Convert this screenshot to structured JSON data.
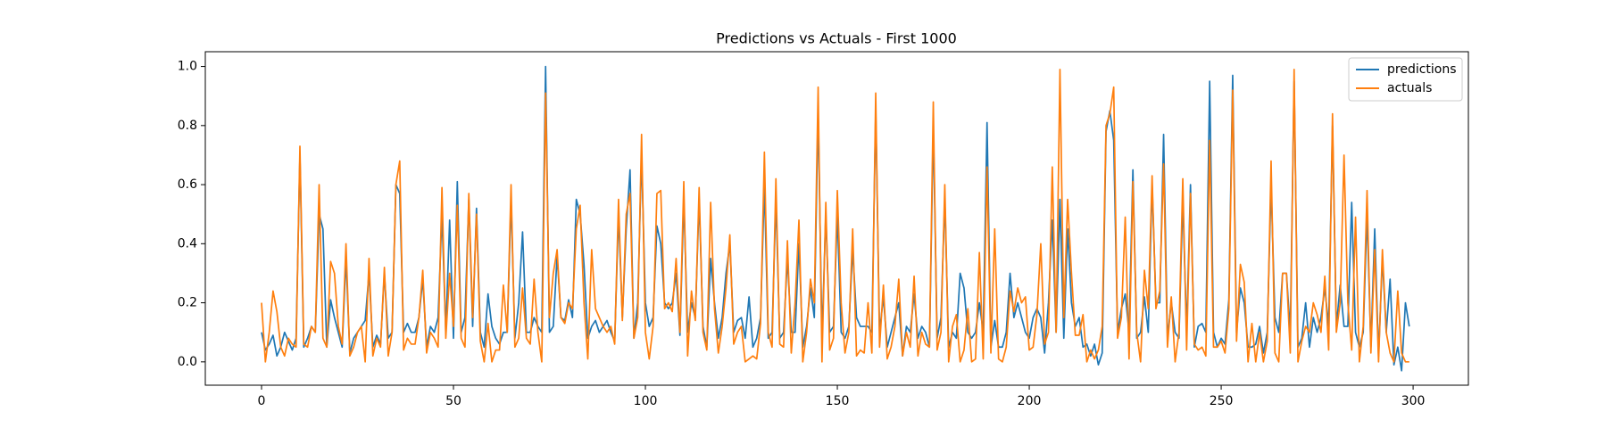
{
  "chart_data": {
    "type": "line",
    "title": "Predictions vs Actuals - First 1000",
    "x": [
      0,
      1,
      2,
      3,
      4,
      5,
      6,
      7,
      8,
      9,
      10,
      11,
      12,
      13,
      14,
      15,
      16,
      17,
      18,
      19,
      20,
      21,
      22,
      23,
      24,
      25,
      26,
      27,
      28,
      29,
      30,
      31,
      32,
      33,
      34,
      35,
      36,
      37,
      38,
      39,
      40,
      41,
      42,
      43,
      44,
      45,
      46,
      47,
      48,
      49,
      50,
      51,
      52,
      53,
      54,
      55,
      56,
      57,
      58,
      59,
      60,
      61,
      62,
      63,
      64,
      65,
      66,
      67,
      68,
      69,
      70,
      71,
      72,
      73,
      74,
      75,
      76,
      77,
      78,
      79,
      80,
      81,
      82,
      83,
      84,
      85,
      86,
      87,
      88,
      89,
      90,
      91,
      92,
      93,
      94,
      95,
      96,
      97,
      98,
      99,
      100,
      101,
      102,
      103,
      104,
      105,
      106,
      107,
      108,
      109,
      110,
      111,
      112,
      113,
      114,
      115,
      116,
      117,
      118,
      119,
      120,
      121,
      122,
      123,
      124,
      125,
      126,
      127,
      128,
      129,
      130,
      131,
      132,
      133,
      134,
      135,
      136,
      137,
      138,
      139,
      140,
      141,
      142,
      143,
      144,
      145,
      146,
      147,
      148,
      149,
      150,
      151,
      152,
      153,
      154,
      155,
      156,
      157,
      158,
      159,
      160,
      161,
      162,
      163,
      164,
      165,
      166,
      167,
      168,
      169,
      170,
      171,
      172,
      173,
      174,
      175,
      176,
      177,
      178,
      179,
      180,
      181,
      182,
      183,
      184,
      185,
      186,
      187,
      188,
      189,
      190,
      191,
      192,
      193,
      194,
      195,
      196,
      197,
      198,
      199,
      200,
      201,
      202,
      203,
      204,
      205,
      206,
      207,
      208,
      209,
      210,
      211,
      212,
      213,
      214,
      215,
      216,
      217,
      218,
      219,
      220,
      221,
      222,
      223,
      224,
      225,
      226,
      227,
      228,
      229,
      230,
      231,
      232,
      233,
      234,
      235,
      236,
      237,
      238,
      239,
      240,
      241,
      242,
      243,
      244,
      245,
      246,
      247,
      248,
      249,
      250,
      251,
      252,
      253,
      254,
      255,
      256,
      257,
      258,
      259,
      260,
      261,
      262,
      263,
      264,
      265,
      266,
      267,
      268,
      269,
      270,
      271,
      272,
      273,
      274,
      275,
      276,
      277,
      278,
      279,
      280,
      281,
      282,
      283,
      284,
      285,
      286,
      287,
      288,
      289,
      290,
      291,
      292,
      293,
      294,
      295,
      296,
      297,
      298,
      299
    ],
    "series": [
      {
        "name": "predictions",
        "color": "#1f77b4",
        "values": [
          0.1,
          0.04,
          0.06,
          0.09,
          0.02,
          0.05,
          0.1,
          0.07,
          0.04,
          0.08,
          0.7,
          0.05,
          0.08,
          0.12,
          0.1,
          0.5,
          0.45,
          0.05,
          0.21,
          0.15,
          0.1,
          0.05,
          0.35,
          0.03,
          0.08,
          0.1,
          0.12,
          0.14,
          0.3,
          0.05,
          0.09,
          0.06,
          0.3,
          0.08,
          0.1,
          0.6,
          0.57,
          0.1,
          0.13,
          0.1,
          0.1,
          0.15,
          0.28,
          0.05,
          0.12,
          0.1,
          0.15,
          0.5,
          0.1,
          0.48,
          0.08,
          0.61,
          0.1,
          0.15,
          0.55,
          0.12,
          0.52,
          0.1,
          0.05,
          0.23,
          0.12,
          0.08,
          0.06,
          0.1,
          0.1,
          0.55,
          0.08,
          0.2,
          0.44,
          0.1,
          0.1,
          0.15,
          0.12,
          0.1,
          1.0,
          0.1,
          0.12,
          0.36,
          0.15,
          0.14,
          0.21,
          0.15,
          0.55,
          0.5,
          0.33,
          0.08,
          0.12,
          0.14,
          0.1,
          0.12,
          0.14,
          0.1,
          0.07,
          0.5,
          0.15,
          0.45,
          0.65,
          0.08,
          0.2,
          0.7,
          0.2,
          0.12,
          0.15,
          0.46,
          0.4,
          0.2,
          0.18,
          0.2,
          0.3,
          0.09,
          0.55,
          0.1,
          0.2,
          0.15,
          0.55,
          0.12,
          0.05,
          0.35,
          0.2,
          0.08,
          0.15,
          0.3,
          0.4,
          0.1,
          0.14,
          0.15,
          0.08,
          0.22,
          0.05,
          0.08,
          0.15,
          0.6,
          0.08,
          0.1,
          0.55,
          0.08,
          0.1,
          0.35,
          0.1,
          0.1,
          0.4,
          0.05,
          0.12,
          0.25,
          0.15,
          0.85,
          0.08,
          0.5,
          0.1,
          0.12,
          0.5,
          0.1,
          0.08,
          0.12,
          0.38,
          0.15,
          0.12,
          0.12,
          0.12,
          0.1,
          0.85,
          0.1,
          0.22,
          0.05,
          0.1,
          0.15,
          0.2,
          0.02,
          0.12,
          0.1,
          0.23,
          0.08,
          0.12,
          0.1,
          0.05,
          0.8,
          0.08,
          0.15,
          0.55,
          0.05,
          0.1,
          0.08,
          0.3,
          0.25,
          0.1,
          0.08,
          0.1,
          0.2,
          0.1,
          0.81,
          0.05,
          0.14,
          0.05,
          0.05,
          0.1,
          0.3,
          0.15,
          0.2,
          0.15,
          0.1,
          0.08,
          0.15,
          0.18,
          0.15,
          0.03,
          0.2,
          0.48,
          0.1,
          0.55,
          0.08,
          0.45,
          0.2,
          0.12,
          0.15,
          0.05,
          0.06,
          0.02,
          0.06,
          -0.01,
          0.03,
          0.78,
          0.85,
          0.75,
          0.1,
          0.18,
          0.23,
          0.1,
          0.65,
          0.08,
          0.1,
          0.22,
          0.1,
          0.6,
          0.2,
          0.2,
          0.77,
          0.08,
          0.2,
          0.1,
          0.08,
          0.55,
          0.1,
          0.6,
          0.05,
          0.12,
          0.13,
          0.1,
          0.95,
          0.1,
          0.05,
          0.08,
          0.06,
          0.21,
          0.97,
          0.1,
          0.25,
          0.2,
          0.05,
          0.05,
          0.06,
          0.12,
          0.03,
          0.1,
          0.6,
          0.15,
          0.1,
          0.3,
          0.3,
          0.1,
          0.95,
          0.05,
          0.08,
          0.2,
          0.05,
          0.15,
          0.1,
          0.15,
          0.25,
          0.12,
          0.8,
          0.12,
          0.26,
          0.12,
          0.12,
          0.54,
          0.1,
          0.05,
          0.1,
          0.5,
          0.05,
          0.45,
          0.02,
          0.35,
          0.1,
          0.28,
          -0.01,
          0.05,
          -0.03,
          0.2,
          0.12
        ]
      },
      {
        "name": "actuals",
        "color": "#ff7f0e",
        "values": [
          0.2,
          0.0,
          0.1,
          0.24,
          0.17,
          0.05,
          0.02,
          0.08,
          0.06,
          0.05,
          0.73,
          0.06,
          0.05,
          0.12,
          0.1,
          0.6,
          0.08,
          0.05,
          0.34,
          0.3,
          0.12,
          0.06,
          0.4,
          0.02,
          0.05,
          0.1,
          0.12,
          0.0,
          0.35,
          0.02,
          0.08,
          0.05,
          0.32,
          0.02,
          0.1,
          0.6,
          0.68,
          0.04,
          0.08,
          0.06,
          0.06,
          0.15,
          0.31,
          0.03,
          0.1,
          0.08,
          0.05,
          0.59,
          0.08,
          0.3,
          0.12,
          0.53,
          0.08,
          0.05,
          0.57,
          0.15,
          0.5,
          0.07,
          0.0,
          0.13,
          0.0,
          0.04,
          0.04,
          0.26,
          0.1,
          0.6,
          0.05,
          0.08,
          0.25,
          0.08,
          0.06,
          0.28,
          0.1,
          0.0,
          0.91,
          0.15,
          0.3,
          0.38,
          0.15,
          0.13,
          0.2,
          0.18,
          0.45,
          0.53,
          0.2,
          0.01,
          0.38,
          0.18,
          0.15,
          0.12,
          0.1,
          0.12,
          0.06,
          0.55,
          0.14,
          0.5,
          0.57,
          0.08,
          0.15,
          0.77,
          0.1,
          0.01,
          0.12,
          0.57,
          0.58,
          0.18,
          0.2,
          0.17,
          0.35,
          0.1,
          0.61,
          0.02,
          0.24,
          0.14,
          0.59,
          0.1,
          0.04,
          0.54,
          0.18,
          0.03,
          0.12,
          0.25,
          0.43,
          0.06,
          0.1,
          0.12,
          0.0,
          0.01,
          0.02,
          0.01,
          0.13,
          0.71,
          0.1,
          0.05,
          0.62,
          0.06,
          0.05,
          0.41,
          0.03,
          0.2,
          0.48,
          0.0,
          0.1,
          0.28,
          0.2,
          0.93,
          0.0,
          0.54,
          0.04,
          0.08,
          0.58,
          0.2,
          0.03,
          0.1,
          0.45,
          0.02,
          0.04,
          0.03,
          0.2,
          0.03,
          0.91,
          0.05,
          0.26,
          0.01,
          0.05,
          0.12,
          0.28,
          0.02,
          0.1,
          0.05,
          0.29,
          0.02,
          0.1,
          0.06,
          0.05,
          0.88,
          0.04,
          0.1,
          0.6,
          0.0,
          0.12,
          0.16,
          0.0,
          0.04,
          0.18,
          0.0,
          0.01,
          0.37,
          0.01,
          0.66,
          0.03,
          0.45,
          0.01,
          0.0,
          0.05,
          0.24,
          0.17,
          0.25,
          0.2,
          0.22,
          0.04,
          0.05,
          0.16,
          0.4,
          0.06,
          0.1,
          0.66,
          0.1,
          0.99,
          0.15,
          0.55,
          0.3,
          0.09,
          0.09,
          0.16,
          0.0,
          0.04,
          0.01,
          0.04,
          0.12,
          0.8,
          0.84,
          0.93,
          0.08,
          0.15,
          0.49,
          0.01,
          0.61,
          0.1,
          0.0,
          0.31,
          0.18,
          0.63,
          0.18,
          0.24,
          0.67,
          0.05,
          0.22,
          0.0,
          0.1,
          0.62,
          0.04,
          0.57,
          0.06,
          0.04,
          0.05,
          0.02,
          0.75,
          0.05,
          0.05,
          0.07,
          0.03,
          0.18,
          0.92,
          0.07,
          0.33,
          0.27,
          0.0,
          0.13,
          0.0,
          0.1,
          0.0,
          0.07,
          0.68,
          0.03,
          0.0,
          0.3,
          0.3,
          0.03,
          0.99,
          0.0,
          0.07,
          0.12,
          0.1,
          0.2,
          0.16,
          0.1,
          0.29,
          0.04,
          0.84,
          0.1,
          0.2,
          0.7,
          0.2,
          0.04,
          0.49,
          0.0,
          0.12,
          0.58,
          0.03,
          0.38,
          0.0,
          0.38,
          0.1,
          0.03,
          0.0,
          0.24,
          0.03,
          0.0,
          0.0
        ]
      }
    ],
    "xlim": [
      -14.65,
      314.4
    ],
    "xticks": [
      0,
      50,
      100,
      150,
      200,
      250,
      300
    ],
    "ylim": [
      -0.079,
      1.05
    ],
    "yticks": [
      {
        "value": 0,
        "label": "0.0"
      },
      0.2,
      0.4,
      0.6,
      0.8,
      {
        "value": 1,
        "label": "1.0"
      }
    ],
    "legend": "upper right",
    "grid": false
  }
}
